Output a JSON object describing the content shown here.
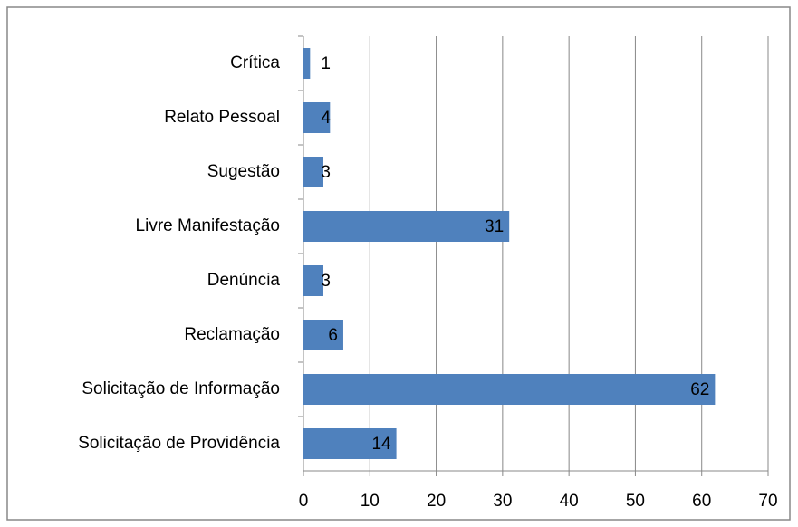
{
  "chart_data": {
    "type": "hbar",
    "categories": [
      "Crítica",
      "Relato Pessoal",
      "Sugestão",
      "Livre Manifestação",
      "Denúncia",
      "Reclamação",
      "Solicitação de Informação",
      "Solicitação de Providência"
    ],
    "values": [
      1,
      4,
      3,
      31,
      3,
      6,
      62,
      14
    ],
    "color": "#4f81bd",
    "xlim": [
      0,
      70
    ],
    "xticks": [
      0,
      10,
      20,
      30,
      40,
      50,
      60,
      70
    ],
    "grid": true
  }
}
